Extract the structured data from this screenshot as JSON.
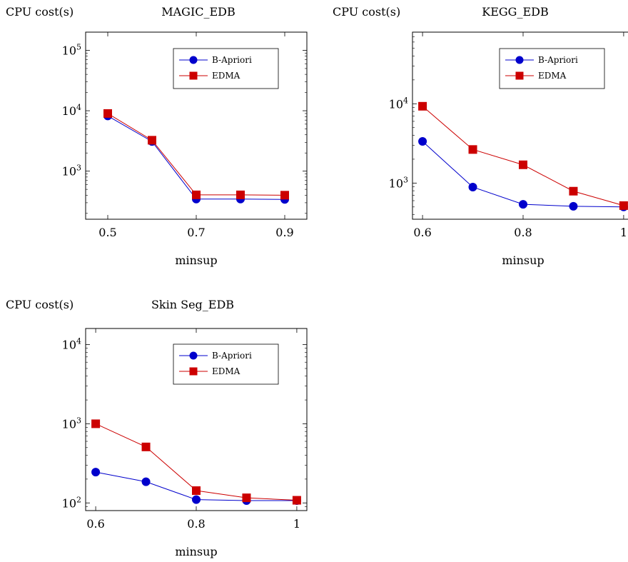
{
  "legend_labels": [
    "B-Apriori",
    "EDMA"
  ],
  "colors": {
    "b_apriori": "#0000cc",
    "edma": "#cc0000"
  },
  "chart_data": [
    {
      "type": "line",
      "title": "MAGIC_EDB",
      "ylabel": "CPU cost(s)",
      "xlabel": "minsup",
      "yscale": "log",
      "ylim": [
        160,
        200000
      ],
      "xlim": [
        0.45,
        0.95
      ],
      "xticks": [
        0.5,
        0.7,
        0.9
      ],
      "xtick_labels": [
        "0.5",
        "0.7",
        "0.9"
      ],
      "yticks": [
        1000,
        10000,
        100000
      ],
      "legend_position": "top-right",
      "series": [
        {
          "name": "B-Apriori",
          "marker": "circle",
          "x": [
            0.5,
            0.6,
            0.7,
            0.8,
            0.9
          ],
          "y": [
            8200,
            3100,
            345,
            345,
            340
          ]
        },
        {
          "name": "EDMA",
          "marker": "square",
          "x": [
            0.5,
            0.6,
            0.7,
            0.8,
            0.9
          ],
          "y": [
            9000,
            3250,
            405,
            405,
            400
          ]
        }
      ]
    },
    {
      "type": "line",
      "title": "KEGG_EDB",
      "ylabel": "CPU cost(s)",
      "xlabel": "minsup",
      "yscale": "log",
      "ylim": [
        350,
        80000
      ],
      "xlim": [
        0.58,
        1.02
      ],
      "xticks": [
        0.6,
        0.8,
        1.0
      ],
      "xtick_labels": [
        "0.6",
        "0.8",
        "1"
      ],
      "yticks": [
        1000,
        10000
      ],
      "legend_position": "top-right",
      "series": [
        {
          "name": "B-Apriori",
          "marker": "circle",
          "x": [
            0.6,
            0.7,
            0.8,
            0.9,
            1.0
          ],
          "y": [
            3350,
            890,
            540,
            510,
            500
          ]
        },
        {
          "name": "EDMA",
          "marker": "square",
          "x": [
            0.6,
            0.7,
            0.8,
            0.9,
            1.0
          ],
          "y": [
            9300,
            2650,
            1700,
            790,
            520
          ]
        }
      ]
    },
    {
      "type": "line",
      "title": "Skin Seg_EDB",
      "ylabel": "CPU cost(s)",
      "xlabel": "minsup",
      "yscale": "log",
      "ylim": [
        80,
        16000
      ],
      "xlim": [
        0.58,
        1.02
      ],
      "xticks": [
        0.6,
        0.8,
        1.0
      ],
      "xtick_labels": [
        "0.6",
        "0.8",
        "1"
      ],
      "yticks": [
        100,
        1000,
        10000
      ],
      "legend_position": "top-right",
      "series": [
        {
          "name": "B-Apriori",
          "marker": "circle",
          "x": [
            0.6,
            0.7,
            0.8,
            0.9,
            1.0
          ],
          "y": [
            245,
            185,
            110,
            107,
            107
          ]
        },
        {
          "name": "EDMA",
          "marker": "square",
          "x": [
            0.6,
            0.7,
            0.8,
            0.9,
            1.0
          ],
          "y": [
            1000,
            510,
            143,
            116,
            108
          ]
        }
      ]
    }
  ]
}
